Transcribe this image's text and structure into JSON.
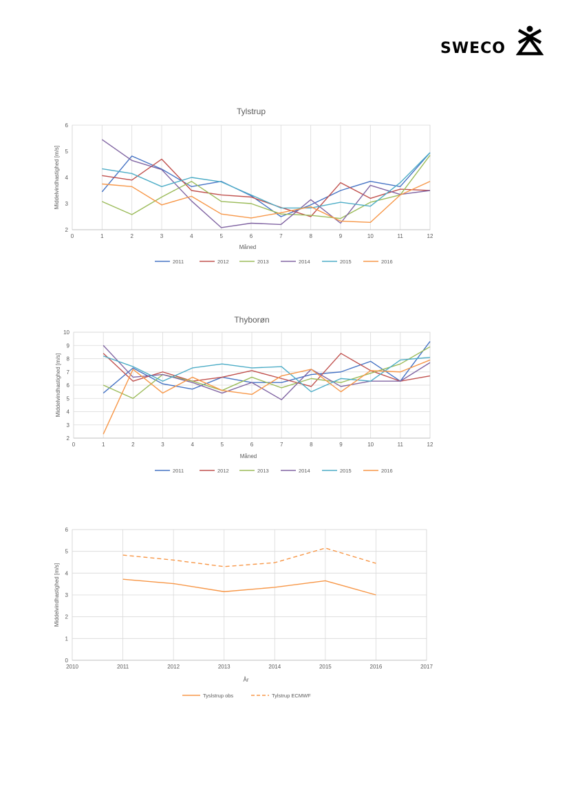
{
  "logo": {
    "text": "SWECO"
  },
  "chart_data": [
    {
      "type": "line",
      "title": "Tylstrup",
      "xlabel": "Måned",
      "ylabel": "Middelvindhastighed [m/s]",
      "xlim": [
        0,
        12
      ],
      "ylim": [
        2,
        6
      ],
      "xticks": [
        0,
        1,
        2,
        3,
        4,
        5,
        6,
        7,
        8,
        9,
        10,
        11,
        12
      ],
      "yticks": [
        2,
        3,
        4,
        5,
        6
      ],
      "grid": "vertical",
      "legend": "bottom",
      "x": [
        1,
        2,
        3,
        4,
        5,
        6,
        7,
        8,
        9,
        10,
        11,
        12
      ],
      "series": [
        {
          "name": "2011",
          "color": "#4472C4",
          "values": [
            3.45,
            4.82,
            4.32,
            3.65,
            3.85,
            3.3,
            2.5,
            2.95,
            3.5,
            3.85,
            3.65,
            4.95
          ]
        },
        {
          "name": "2012",
          "color": "#C0504D",
          "values": [
            4.07,
            3.9,
            4.7,
            3.5,
            3.33,
            3.25,
            2.85,
            2.5,
            3.8,
            3.2,
            3.55,
            3.5
          ]
        },
        {
          "name": "2013",
          "color": "#9BBB59",
          "values": [
            3.08,
            2.58,
            3.25,
            3.85,
            3.08,
            3.0,
            2.6,
            2.55,
            2.43,
            3.05,
            3.33,
            4.85
          ]
        },
        {
          "name": "2014",
          "color": "#8064A2",
          "values": [
            5.45,
            4.65,
            4.3,
            3.1,
            2.08,
            2.25,
            2.2,
            3.15,
            2.25,
            3.7,
            3.35,
            3.5
          ]
        },
        {
          "name": "2015",
          "color": "#4BACC6",
          "values": [
            4.33,
            4.15,
            3.65,
            4.0,
            3.83,
            3.33,
            2.83,
            2.83,
            3.05,
            2.9,
            3.8,
            4.95
          ]
        },
        {
          "name": "2016",
          "color": "#F79646",
          "values": [
            3.75,
            3.65,
            2.95,
            3.28,
            2.6,
            2.45,
            2.65,
            2.88,
            2.33,
            2.28,
            3.33,
            3.85
          ]
        }
      ]
    },
    {
      "type": "line",
      "title": "Thyborøn",
      "xlabel": "Måned",
      "ylabel": "Middelvindhastighed [m/s]",
      "xlim": [
        0,
        12
      ],
      "ylim": [
        2,
        10
      ],
      "xticks": [
        0,
        1,
        2,
        3,
        4,
        5,
        6,
        7,
        8,
        9,
        10,
        11,
        12
      ],
      "yticks": [
        2,
        3,
        4,
        5,
        6,
        7,
        8,
        9,
        10
      ],
      "grid": "both",
      "legend": "bottom",
      "x": [
        1,
        2,
        3,
        4,
        5,
        6,
        7,
        8,
        9,
        10,
        11,
        12
      ],
      "series": [
        {
          "name": "2011",
          "color": "#4472C4",
          "values": [
            5.4,
            7.3,
            6.1,
            5.7,
            6.6,
            6.2,
            6.2,
            6.8,
            7.0,
            7.8,
            6.3,
            9.3
          ]
        },
        {
          "name": "2012",
          "color": "#C0504D",
          "values": [
            8.4,
            6.3,
            7.0,
            6.3,
            6.6,
            7.1,
            6.5,
            5.9,
            8.4,
            7.1,
            6.3,
            6.7
          ]
        },
        {
          "name": "2013",
          "color": "#9BBB59",
          "values": [
            6.0,
            5.0,
            6.8,
            6.3,
            5.6,
            6.6,
            5.8,
            6.5,
            6.2,
            6.9,
            7.6,
            8.9
          ]
        },
        {
          "name": "2014",
          "color": "#8064A2",
          "values": [
            9.0,
            6.6,
            6.8,
            6.2,
            5.4,
            6.2,
            4.9,
            7.2,
            5.9,
            6.3,
            6.3,
            7.7
          ]
        },
        {
          "name": "2015",
          "color": "#4BACC6",
          "values": [
            8.2,
            7.4,
            6.3,
            7.3,
            7.6,
            7.3,
            7.4,
            5.5,
            6.5,
            6.3,
            7.9,
            8.1
          ]
        },
        {
          "name": "2016",
          "color": "#F79646",
          "values": [
            2.3,
            7.2,
            5.4,
            6.6,
            5.6,
            5.3,
            6.7,
            7.2,
            5.5,
            7.1,
            7.0,
            7.9
          ]
        }
      ]
    },
    {
      "type": "line",
      "title": "",
      "xlabel": "År",
      "ylabel": "Middelvindhastighed [m/s]",
      "xlim": [
        2010,
        2017
      ],
      "ylim": [
        0,
        6
      ],
      "xticks": [
        2010,
        2011,
        2012,
        2013,
        2014,
        2015,
        2016,
        2017
      ],
      "yticks": [
        0,
        1,
        2,
        3,
        4,
        5,
        6
      ],
      "grid": "both",
      "legend": "bottom",
      "x": [
        2011,
        2012,
        2013,
        2014,
        2015,
        2016
      ],
      "series": [
        {
          "name": "Tyslstrup obs",
          "color": "#F79646",
          "dash": false,
          "values": [
            3.72,
            3.52,
            3.15,
            3.35,
            3.65,
            3.0
          ]
        },
        {
          "name": "Tylstrup ECMWF",
          "color": "#F79646",
          "dash": true,
          "values": [
            4.83,
            4.6,
            4.3,
            4.48,
            5.15,
            4.45
          ]
        }
      ]
    }
  ]
}
